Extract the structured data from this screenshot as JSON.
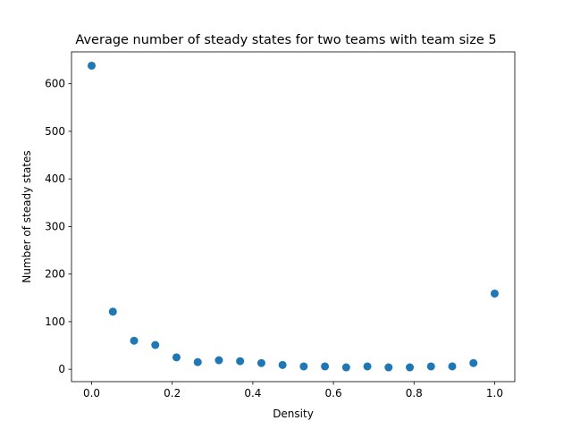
{
  "chart_data": {
    "type": "scatter",
    "title": "Average number of steady states for two teams with team size 5",
    "xlabel": "Density",
    "ylabel": "Number of steady states",
    "xlim": [
      -0.05,
      1.05
    ],
    "ylim": [
      -26,
      667
    ],
    "xticks": [
      0.0,
      0.2,
      0.4,
      0.6,
      0.8,
      1.0
    ],
    "xtick_labels": [
      "0.0",
      "0.2",
      "0.4",
      "0.6",
      "0.8",
      "1.0"
    ],
    "yticks": [
      0,
      100,
      200,
      300,
      400,
      500,
      600
    ],
    "ytick_labels": [
      "0",
      "100",
      "200",
      "300",
      "400",
      "500",
      "600"
    ],
    "grid": false,
    "legend": "none",
    "marker_color": "#1f77b4",
    "series": [
      {
        "x": [
          0.0,
          0.0526,
          0.1053,
          0.1579,
          0.2105,
          0.2632,
          0.3158,
          0.3684,
          0.4211,
          0.4737,
          0.5263,
          0.5789,
          0.6316,
          0.6842,
          0.7368,
          0.7895,
          0.8421,
          0.8947,
          0.9474,
          1.0
        ],
        "y": [
          638,
          121,
          60,
          51,
          25,
          15,
          19,
          17,
          13,
          9,
          6,
          6,
          4,
          6,
          4,
          4,
          6,
          6,
          13,
          159
        ]
      }
    ]
  }
}
